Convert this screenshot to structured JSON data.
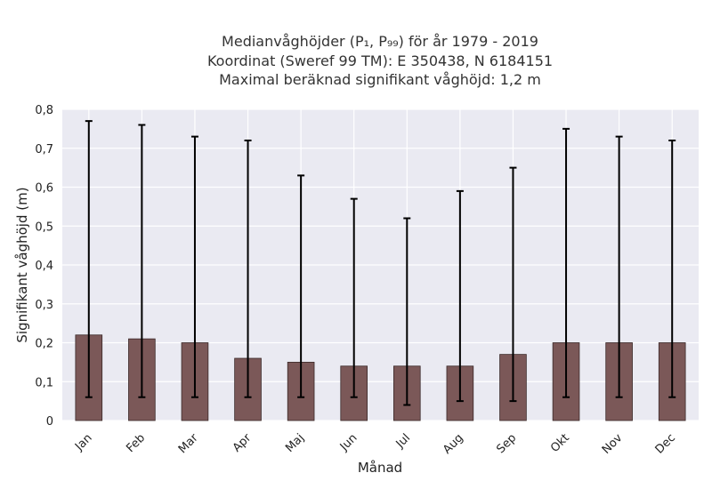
{
  "chart_data": {
    "type": "bar",
    "title_lines": [
      "Medianvåghöjder (P₁, P₉₉) för år 1979 - 2019",
      "Koordinat (Sweref 99 TM): E 350438, N 6184151",
      "Maximal beräknad signifikant våghöjd: 1,2 m"
    ],
    "xlabel": "Månad",
    "ylabel": "Signifikant våghöjd (m)",
    "categories": [
      "Jan",
      "Feb",
      "Mar",
      "Apr",
      "Maj",
      "Jun",
      "Jul",
      "Aug",
      "Sep",
      "Okt",
      "Nov",
      "Dec"
    ],
    "series": [
      {
        "values": [
          0.22,
          0.21,
          0.2,
          0.16,
          0.15,
          0.14,
          0.14,
          0.14,
          0.17,
          0.2,
          0.2,
          0.2
        ],
        "p1": [
          0.06,
          0.06,
          0.06,
          0.06,
          0.06,
          0.06,
          0.04,
          0.05,
          0.05,
          0.06,
          0.06,
          0.06
        ],
        "p99": [
          0.77,
          0.76,
          0.73,
          0.72,
          0.63,
          0.57,
          0.52,
          0.59,
          0.65,
          0.75,
          0.73,
          0.72
        ]
      }
    ],
    "ylim": [
      0,
      0.8
    ],
    "yticks": [
      "0",
      "0,1",
      "0,2",
      "0,3",
      "0,4",
      "0,5",
      "0,6",
      "0,7",
      "0,8"
    ],
    "grid": true,
    "colors": {
      "bar": "#7b5858",
      "bar_edge": "#3a2828",
      "errorbar": "#000000",
      "plot_bg": "#eaeaf2",
      "grid": "#ffffff"
    }
  }
}
